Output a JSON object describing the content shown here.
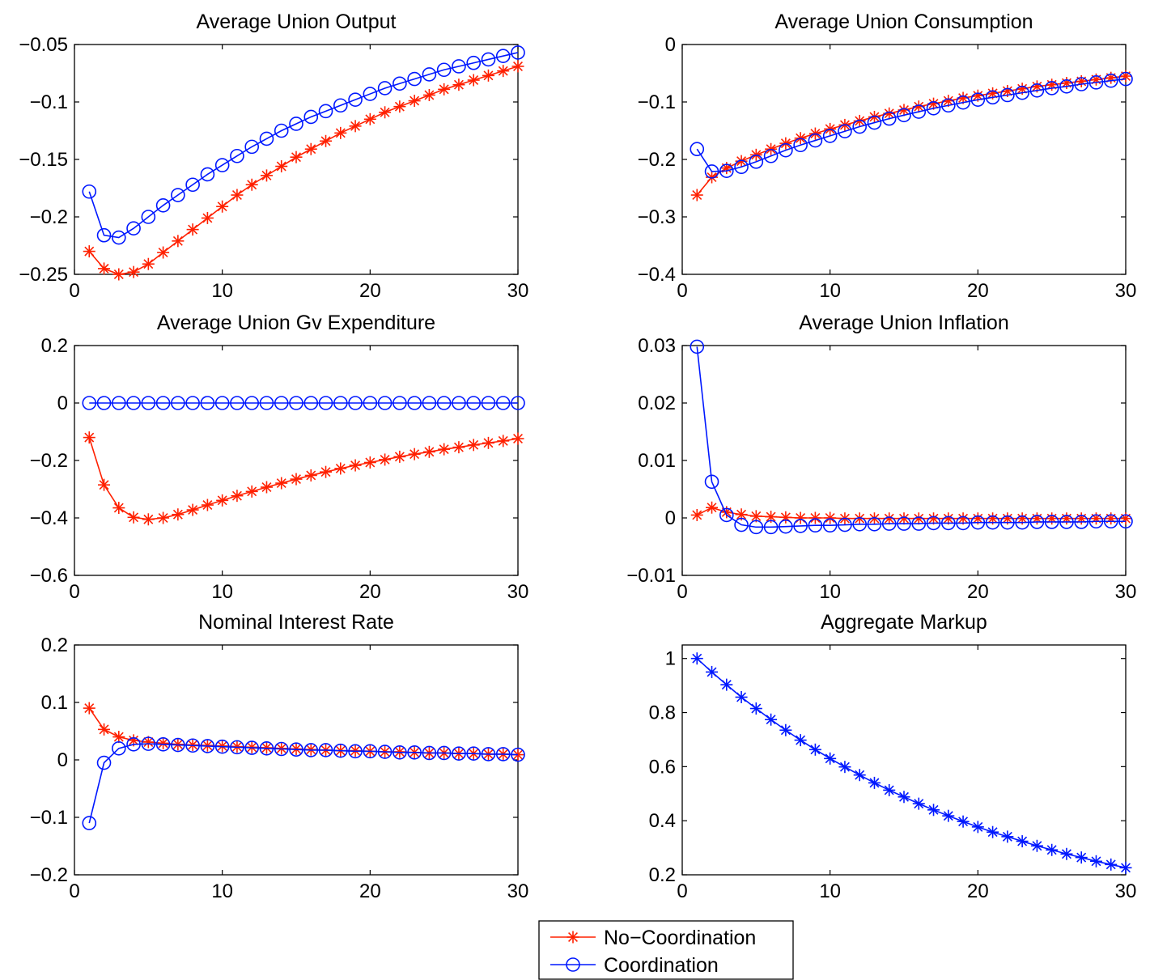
{
  "colors": {
    "no_coordination": "#ff2000",
    "coordination": "#0018ff",
    "axis": "#000000"
  },
  "legend": {
    "entries": [
      {
        "label": "No−Coordination",
        "series_key": "no_coordination",
        "marker": "star"
      },
      {
        "label": "Coordination",
        "series_key": "coordination",
        "marker": "circle"
      }
    ]
  },
  "chart_data": [
    {
      "type": "line",
      "title": "Average Union Output",
      "xlim": [
        0,
        30
      ],
      "ylim": [
        -0.25,
        -0.05
      ],
      "xticks": [
        0,
        10,
        20,
        30
      ],
      "xtick_labels": [
        "0",
        "10",
        "20",
        "30"
      ],
      "yticks": [
        -0.25,
        -0.2,
        -0.15,
        -0.1,
        -0.05
      ],
      "ytick_labels": [
        "−0.25",
        "−0.2",
        "−0.15",
        "−0.1",
        "−0.05"
      ],
      "x": [
        1,
        2,
        3,
        4,
        5,
        6,
        7,
        8,
        9,
        10,
        11,
        12,
        13,
        14,
        15,
        16,
        17,
        18,
        19,
        20,
        21,
        22,
        23,
        24,
        25,
        26,
        27,
        28,
        29,
        30
      ],
      "series": [
        {
          "key": "no_coordination",
          "name": "No−Coordination",
          "marker": "star",
          "values": [
            -0.23,
            -0.245,
            -0.25,
            -0.248,
            -0.241,
            -0.231,
            -0.221,
            -0.211,
            -0.201,
            -0.191,
            -0.181,
            -0.172,
            -0.164,
            -0.156,
            -0.148,
            -0.141,
            -0.134,
            -0.127,
            -0.121,
            -0.115,
            -0.109,
            -0.104,
            -0.099,
            -0.094,
            -0.089,
            -0.085,
            -0.081,
            -0.077,
            -0.073,
            -0.069
          ]
        },
        {
          "key": "coordination",
          "name": "Coordination",
          "marker": "circle",
          "values": [
            -0.178,
            -0.216,
            -0.218,
            -0.21,
            -0.2,
            -0.19,
            -0.181,
            -0.172,
            -0.163,
            -0.155,
            -0.147,
            -0.139,
            -0.132,
            -0.125,
            -0.119,
            -0.113,
            -0.108,
            -0.103,
            -0.098,
            -0.093,
            -0.088,
            -0.084,
            -0.08,
            -0.076,
            -0.072,
            -0.069,
            -0.066,
            -0.063,
            -0.06,
            -0.057
          ]
        }
      ]
    },
    {
      "type": "line",
      "title": "Average Union Consumption",
      "xlim": [
        0,
        30
      ],
      "ylim": [
        -0.4,
        0
      ],
      "xticks": [
        0,
        10,
        20,
        30
      ],
      "xtick_labels": [
        "0",
        "10",
        "20",
        "30"
      ],
      "yticks": [
        -0.4,
        -0.3,
        -0.2,
        -0.1,
        0
      ],
      "ytick_labels": [
        "−0.4",
        "−0.3",
        "−0.2",
        "−0.1",
        "0"
      ],
      "x": [
        1,
        2,
        3,
        4,
        5,
        6,
        7,
        8,
        9,
        10,
        11,
        12,
        13,
        14,
        15,
        16,
        17,
        18,
        19,
        20,
        21,
        22,
        23,
        24,
        25,
        26,
        27,
        28,
        29,
        30
      ],
      "series": [
        {
          "key": "no_coordination",
          "name": "No−Coordination",
          "marker": "star",
          "values": [
            -0.262,
            -0.231,
            -0.215,
            -0.203,
            -0.192,
            -0.182,
            -0.172,
            -0.163,
            -0.155,
            -0.147,
            -0.14,
            -0.133,
            -0.126,
            -0.12,
            -0.114,
            -0.108,
            -0.103,
            -0.098,
            -0.093,
            -0.089,
            -0.085,
            -0.081,
            -0.077,
            -0.073,
            -0.07,
            -0.067,
            -0.064,
            -0.061,
            -0.058,
            -0.055
          ]
        },
        {
          "key": "coordination",
          "name": "Coordination",
          "marker": "circle",
          "values": [
            -0.182,
            -0.221,
            -0.22,
            -0.213,
            -0.204,
            -0.194,
            -0.184,
            -0.175,
            -0.167,
            -0.159,
            -0.151,
            -0.143,
            -0.136,
            -0.129,
            -0.123,
            -0.117,
            -0.111,
            -0.106,
            -0.101,
            -0.096,
            -0.092,
            -0.088,
            -0.084,
            -0.08,
            -0.076,
            -0.073,
            -0.069,
            -0.066,
            -0.063,
            -0.06
          ]
        }
      ]
    },
    {
      "type": "line",
      "title": "Average Union Gv Expenditure",
      "xlim": [
        0,
        30
      ],
      "ylim": [
        -0.6,
        0.2
      ],
      "xticks": [
        0,
        10,
        20,
        30
      ],
      "xtick_labels": [
        "0",
        "10",
        "20",
        "30"
      ],
      "yticks": [
        -0.6,
        -0.4,
        -0.2,
        0,
        0.2
      ],
      "ytick_labels": [
        "−0.6",
        "−0.4",
        "−0.2",
        "0",
        "0.2"
      ],
      "x": [
        1,
        2,
        3,
        4,
        5,
        6,
        7,
        8,
        9,
        10,
        11,
        12,
        13,
        14,
        15,
        16,
        17,
        18,
        19,
        20,
        21,
        22,
        23,
        24,
        25,
        26,
        27,
        28,
        29,
        30
      ],
      "series": [
        {
          "key": "no_coordination",
          "name": "No−Coordination",
          "marker": "star",
          "values": [
            -0.12,
            -0.285,
            -0.365,
            -0.398,
            -0.405,
            -0.4,
            -0.388,
            -0.372,
            -0.355,
            -0.339,
            -0.323,
            -0.308,
            -0.293,
            -0.279,
            -0.265,
            -0.252,
            -0.24,
            -0.228,
            -0.217,
            -0.207,
            -0.197,
            -0.187,
            -0.178,
            -0.17,
            -0.161,
            -0.154,
            -0.146,
            -0.139,
            -0.132,
            -0.124
          ]
        },
        {
          "key": "coordination",
          "name": "Coordination",
          "marker": "circle",
          "values": [
            0,
            0,
            0,
            0,
            0,
            0,
            0,
            0,
            0,
            0,
            0,
            0,
            0,
            0,
            0,
            0,
            0,
            0,
            0,
            0,
            0,
            0,
            0,
            0,
            0,
            0,
            0,
            0,
            0,
            0
          ]
        }
      ]
    },
    {
      "type": "line",
      "title": "Average Union Inflation",
      "xlim": [
        0,
        30
      ],
      "ylim": [
        -0.01,
        0.03
      ],
      "xticks": [
        0,
        10,
        20,
        30
      ],
      "xtick_labels": [
        "0",
        "10",
        "20",
        "30"
      ],
      "yticks": [
        -0.01,
        0,
        0.01,
        0.02,
        0.03
      ],
      "ytick_labels": [
        "−0.01",
        "0",
        "0.01",
        "0.02",
        "0.03"
      ],
      "x": [
        1,
        2,
        3,
        4,
        5,
        6,
        7,
        8,
        9,
        10,
        11,
        12,
        13,
        14,
        15,
        16,
        17,
        18,
        19,
        20,
        21,
        22,
        23,
        24,
        25,
        26,
        27,
        28,
        29,
        30
      ],
      "series": [
        {
          "key": "no_coordination",
          "name": "No−Coordination",
          "marker": "star",
          "values": [
            0.0005,
            0.0018,
            0.001,
            0.0006,
            0.0003,
            0.0002,
            0.0001,
            0.0,
            0.0,
            0.0,
            -0.0001,
            -0.0001,
            -0.0001,
            -0.0001,
            -0.0001,
            -0.0001,
            -0.0001,
            -0.0001,
            -0.0001,
            -0.0001,
            -0.0001,
            -0.0001,
            -0.0001,
            -0.0001,
            -0.0001,
            -0.0001,
            -0.0001,
            -0.0001,
            -0.0001,
            -0.0001
          ]
        },
        {
          "key": "coordination",
          "name": "Coordination",
          "marker": "circle",
          "values": [
            0.0298,
            0.0063,
            0.0005,
            -0.0012,
            -0.0016,
            -0.0016,
            -0.0015,
            -0.0014,
            -0.0013,
            -0.0013,
            -0.0012,
            -0.0011,
            -0.0011,
            -0.001,
            -0.001,
            -0.001,
            -0.0009,
            -0.0009,
            -0.0009,
            -0.0008,
            -0.0008,
            -0.0008,
            -0.0008,
            -0.0007,
            -0.0007,
            -0.0007,
            -0.0007,
            -0.0006,
            -0.0006,
            -0.0006
          ]
        }
      ]
    },
    {
      "type": "line",
      "title": "Nominal Interest Rate",
      "xlim": [
        0,
        30
      ],
      "ylim": [
        -0.2,
        0.2
      ],
      "xticks": [
        0,
        10,
        20,
        30
      ],
      "xtick_labels": [
        "0",
        "10",
        "20",
        "30"
      ],
      "yticks": [
        -0.2,
        -0.1,
        0,
        0.1,
        0.2
      ],
      "ytick_labels": [
        "−0.2",
        "−0.1",
        "0",
        "0.1",
        "0.2"
      ],
      "x": [
        1,
        2,
        3,
        4,
        5,
        6,
        7,
        8,
        9,
        10,
        11,
        12,
        13,
        14,
        15,
        16,
        17,
        18,
        19,
        20,
        21,
        22,
        23,
        24,
        25,
        26,
        27,
        28,
        29,
        30
      ],
      "series": [
        {
          "key": "no_coordination",
          "name": "No−Coordination",
          "marker": "star",
          "values": [
            0.09,
            0.053,
            0.04,
            0.034,
            0.031,
            0.029,
            0.027,
            0.026,
            0.025,
            0.024,
            0.023,
            0.022,
            0.021,
            0.02,
            0.019,
            0.018,
            0.017,
            0.016,
            0.016,
            0.015,
            0.014,
            0.014,
            0.013,
            0.012,
            0.012,
            0.011,
            0.011,
            0.01,
            0.01,
            0.009
          ]
        },
        {
          "key": "coordination",
          "name": "Coordination",
          "marker": "circle",
          "values": [
            -0.11,
            -0.005,
            0.02,
            0.027,
            0.028,
            0.027,
            0.026,
            0.025,
            0.024,
            0.023,
            0.022,
            0.021,
            0.02,
            0.019,
            0.018,
            0.017,
            0.017,
            0.016,
            0.015,
            0.015,
            0.014,
            0.013,
            0.013,
            0.012,
            0.012,
            0.011,
            0.011,
            0.01,
            0.01,
            0.009
          ]
        }
      ]
    },
    {
      "type": "line",
      "title": "Aggregate Markup",
      "xlim": [
        0,
        30
      ],
      "ylim": [
        0.2,
        1.05
      ],
      "xticks": [
        0,
        10,
        20,
        30
      ],
      "xtick_labels": [
        "0",
        "10",
        "20",
        "30"
      ],
      "yticks": [
        0.2,
        0.4,
        0.6,
        0.8,
        1
      ],
      "ytick_labels": [
        "0.2",
        "0.4",
        "0.6",
        "0.8",
        "1"
      ],
      "x": [
        1,
        2,
        3,
        4,
        5,
        6,
        7,
        8,
        9,
        10,
        11,
        12,
        13,
        14,
        15,
        16,
        17,
        18,
        19,
        20,
        21,
        22,
        23,
        24,
        25,
        26,
        27,
        28,
        29,
        30
      ],
      "series": [
        {
          "key": "coordination",
          "name": "Coordination",
          "marker": "star",
          "values": [
            1.0,
            0.95,
            0.903,
            0.857,
            0.815,
            0.774,
            0.735,
            0.698,
            0.663,
            0.63,
            0.599,
            0.569,
            0.54,
            0.513,
            0.488,
            0.463,
            0.44,
            0.418,
            0.397,
            0.377,
            0.358,
            0.341,
            0.324,
            0.307,
            0.292,
            0.277,
            0.264,
            0.25,
            0.238,
            0.226
          ]
        }
      ]
    }
  ]
}
